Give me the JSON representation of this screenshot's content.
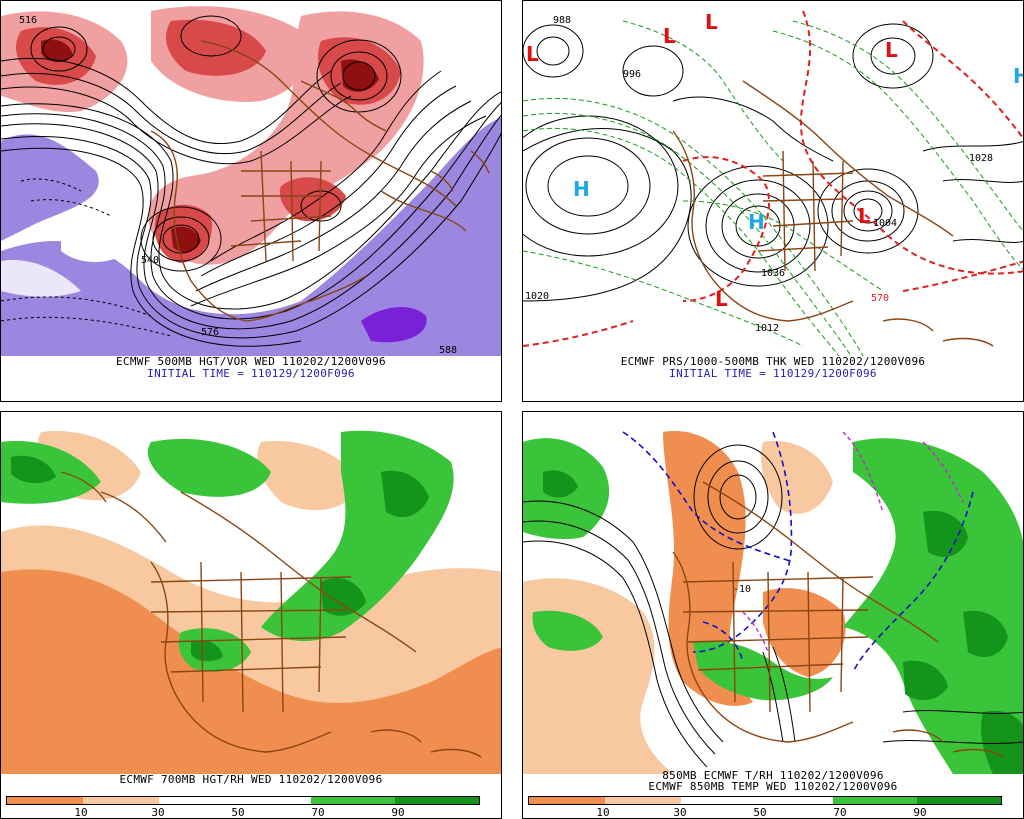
{
  "panels": [
    {
      "id": "500mb",
      "caption_line1": "ECMWF 500MB HGT/VOR WED 110202/1200V096",
      "caption_line2": "INITIAL TIME = 110129/1200F096",
      "contour_labels": [
        "576",
        "588",
        "540",
        "516"
      ]
    },
    {
      "id": "surface",
      "caption_line1": "ECMWF PRS/1000-500MB THK WED 110202/1200V096",
      "caption_line2": "INITIAL TIME = 110129/1200F096",
      "symbols": {
        "high": "H",
        "low": "L"
      },
      "contour_labels": [
        "1020",
        "1028",
        "1004",
        "1036",
        "1012",
        "996",
        "988",
        "570"
      ]
    },
    {
      "id": "700mb",
      "caption_line1": "ECMWF 700MB HGT/RH WED 110202/1200V096",
      "colorbar_ticks": [
        "10",
        "30",
        "50",
        "70",
        "90"
      ]
    },
    {
      "id": "850mb",
      "caption_line1": "850MB ECMWF T/RH 110202/1200V096",
      "caption_line2": "ECMWF 850MB TEMP WED 110202/1200V096",
      "contour_labels": [
        "-10"
      ],
      "colorbar_ticks": [
        "10",
        "30",
        "50",
        "70",
        "90"
      ]
    }
  ],
  "colors": {
    "vort_red_light": "#f0a0a0",
    "vort_red": "#d84a4a",
    "vort_red_dark": "#8e1010",
    "vort_purple": "#9b86e0",
    "vort_purple_dark": "#7a20d8",
    "rh_dry_dark": "#f08e50",
    "rh_dry_light": "#f8c9a0",
    "rh_moist": "#39c439",
    "rh_moist_dark": "#14941a",
    "border_brown": "#8b4513",
    "high_blue": "#1fa6e8",
    "low_red": "#e01010",
    "thk_green": "#1a9a1a",
    "thk_red": "#e02020",
    "temp_blue": "#1010c8",
    "temp_magenta": "#d020d0"
  }
}
